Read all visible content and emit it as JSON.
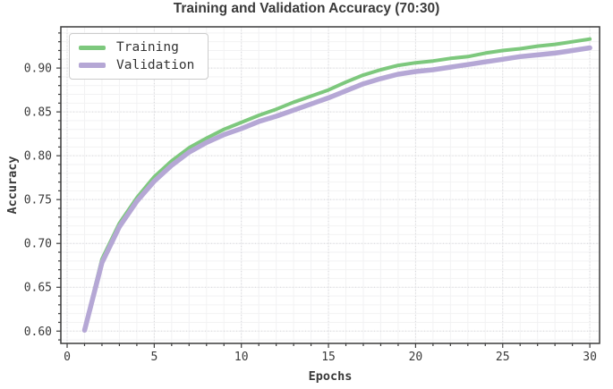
{
  "colors": {
    "training_line": "#7dc87d",
    "validation_line": "#b5a7d5",
    "title_text": "#3a3a3a",
    "tick_text": "#3a3a3a",
    "spine": "#3c3c3c",
    "grid_minor": "#f2f2f3",
    "grid_major": "#d6d6da",
    "legend_border": "#cccccc",
    "background": "#ffffff"
  },
  "chart_data": {
    "type": "line",
    "title": "Training and Validation Accuracy (70:30)",
    "xlabel": "Epochs",
    "ylabel": "Accuracy",
    "x": [
      1,
      2,
      3,
      4,
      5,
      6,
      7,
      8,
      9,
      10,
      11,
      12,
      13,
      14,
      15,
      16,
      17,
      18,
      19,
      20,
      21,
      22,
      23,
      24,
      25,
      26,
      27,
      28,
      29,
      30
    ],
    "series": [
      {
        "name": "Training",
        "color": "#7dc87d",
        "line_width": 4,
        "values": [
          0.602,
          0.682,
          0.723,
          0.752,
          0.776,
          0.794,
          0.809,
          0.82,
          0.83,
          0.838,
          0.846,
          0.853,
          0.861,
          0.868,
          0.875,
          0.884,
          0.892,
          0.898,
          0.903,
          0.906,
          0.908,
          0.911,
          0.913,
          0.917,
          0.92,
          0.922,
          0.925,
          0.927,
          0.93,
          0.933
        ]
      },
      {
        "name": "Validation",
        "color": "#b5a7d5",
        "line_width": 5.5,
        "values": [
          0.601,
          0.678,
          0.719,
          0.748,
          0.771,
          0.789,
          0.804,
          0.815,
          0.824,
          0.831,
          0.839,
          0.845,
          0.852,
          0.859,
          0.866,
          0.874,
          0.882,
          0.888,
          0.893,
          0.896,
          0.898,
          0.901,
          0.904,
          0.907,
          0.91,
          0.913,
          0.915,
          0.917,
          0.92,
          0.923
        ]
      }
    ],
    "xlim": [
      -0.36,
      30.56
    ],
    "ylim": [
      0.586,
      0.947
    ],
    "xticks": [
      0,
      5,
      10,
      15,
      20,
      25,
      30
    ],
    "yticks": [
      0.6,
      0.65,
      0.7,
      0.75,
      0.8,
      0.85,
      0.9
    ],
    "x_minor_step": 1,
    "y_minor_step": 0.01,
    "grid": true,
    "legend_position": "upper left"
  }
}
